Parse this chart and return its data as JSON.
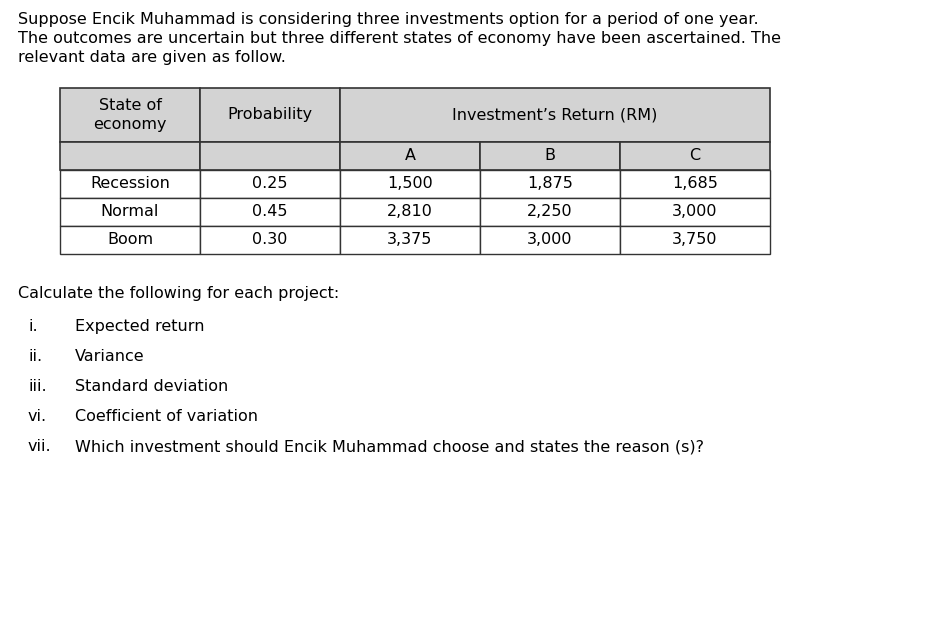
{
  "intro_text": [
    "Suppose Encik Muhammad is considering three investments option for a period of one year.",
    "The outcomes are uncertain but three different states of economy have been ascertained. The",
    "relevant data are given as follow."
  ],
  "table": {
    "header_row1_labels": [
      "State of\neconomy",
      "Probability",
      "Investment’s Return (RM)"
    ],
    "header_row2_labels": [
      "A",
      "B",
      "C"
    ],
    "rows": [
      [
        "Recession",
        "0.25",
        "1,500",
        "1,875",
        "1,685"
      ],
      [
        "Normal",
        "0.45",
        "2,810",
        "2,250",
        "3,000"
      ],
      [
        "Boom",
        "0.30",
        "3,375",
        "3,000",
        "3,750"
      ]
    ],
    "header_bg": "#d3d3d3",
    "row_bg": "#ffffff",
    "border_color": "#333333"
  },
  "questions_label": "Calculate the following for each project:",
  "questions": [
    [
      "i.",
      "Expected return"
    ],
    [
      "ii.",
      "Variance"
    ],
    [
      "iii.",
      "Standard deviation"
    ],
    [
      "vi.",
      "Coefficient of variation"
    ],
    [
      "vii.",
      "Which investment should Encik Muhammad choose and states the reason (s)?"
    ]
  ],
  "font_size": 11.5,
  "bg_color": "#ffffff",
  "text_color": "#000000"
}
